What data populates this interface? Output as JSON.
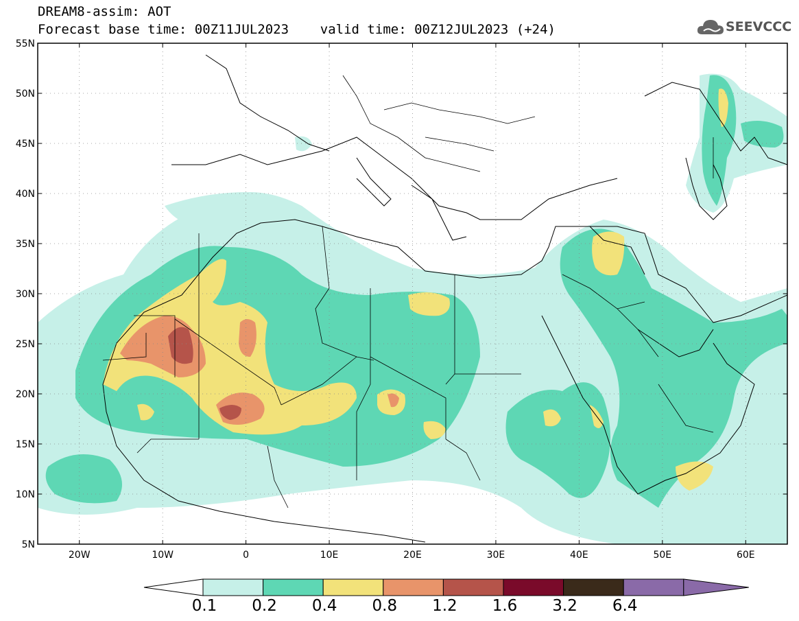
{
  "header": {
    "title_line1": "DREAM8-assim: AOT",
    "title_line2": "Forecast base time: 00Z11JUL2023    valid time: 00Z12JUL2023 (+24)"
  },
  "logo": {
    "text": "SEEVCCC",
    "icon": "cloud-icon"
  },
  "map": {
    "lon_range": [
      -25,
      65
    ],
    "lat_range": [
      5,
      55
    ],
    "lat_labels": [
      "5N",
      "10N",
      "15N",
      "20N",
      "25N",
      "30N",
      "35N",
      "40N",
      "45N",
      "50N",
      "55N"
    ],
    "lat_values": [
      5,
      10,
      15,
      20,
      25,
      30,
      35,
      40,
      45,
      50,
      55
    ],
    "lon_labels": [
      "20W",
      "10W",
      "0",
      "10E",
      "20E",
      "30E",
      "40E",
      "50E",
      "60E"
    ],
    "lon_values": [
      -20,
      -10,
      0,
      10,
      20,
      30,
      40,
      50,
      60
    ],
    "gridlines": "dotted"
  },
  "colorbar": {
    "labels": [
      "0.1",
      "0.2",
      "0.4",
      "0.8",
      "1.2",
      "1.6",
      "3.2",
      "6.4"
    ],
    "colors": [
      "#c6f0e8",
      "#5ed7b4",
      "#f2e27a",
      "#e8946a",
      "#b5544a",
      "#7a0a2a",
      "#3a2a1a",
      "#8a6aa8"
    ],
    "under_color": "#ffffff",
    "over_color": "#8a6aa8"
  }
}
